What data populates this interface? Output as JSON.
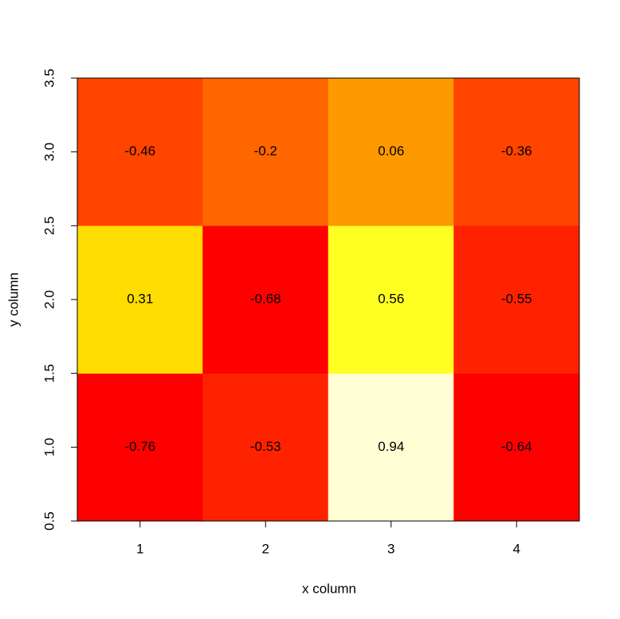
{
  "chart_data": {
    "type": "heatmap",
    "xlabel": "x column",
    "ylabel": "y column",
    "x": [
      1,
      2,
      3,
      4
    ],
    "y": [
      1,
      2,
      3
    ],
    "z": [
      [
        -0.76,
        -0.53,
        0.94,
        -0.64
      ],
      [
        0.31,
        -0.68,
        0.56,
        -0.55
      ],
      [
        -0.46,
        -0.2,
        0.06,
        -0.36
      ]
    ],
    "colors": [
      [
        "#ff0000",
        "#ff2200",
        "#ffffd5",
        "#ff0000"
      ],
      [
        "#ffdd00",
        "#ff0000",
        "#ffff22",
        "#ff2200"
      ],
      [
        "#ff4400",
        "#ff6600",
        "#ff9900",
        "#ff4400"
      ]
    ],
    "xlim": [
      0.5,
      4.5
    ],
    "xticks": [
      1,
      2,
      3,
      4
    ],
    "ylim": [
      0.5,
      3.5
    ],
    "yticks": [
      0.5,
      {
        "value": 1,
        "label": "1.0"
      },
      1.5,
      {
        "value": 2,
        "label": "2.0"
      },
      2.5,
      {
        "value": 3,
        "label": "3.0"
      },
      3.5
    ]
  }
}
